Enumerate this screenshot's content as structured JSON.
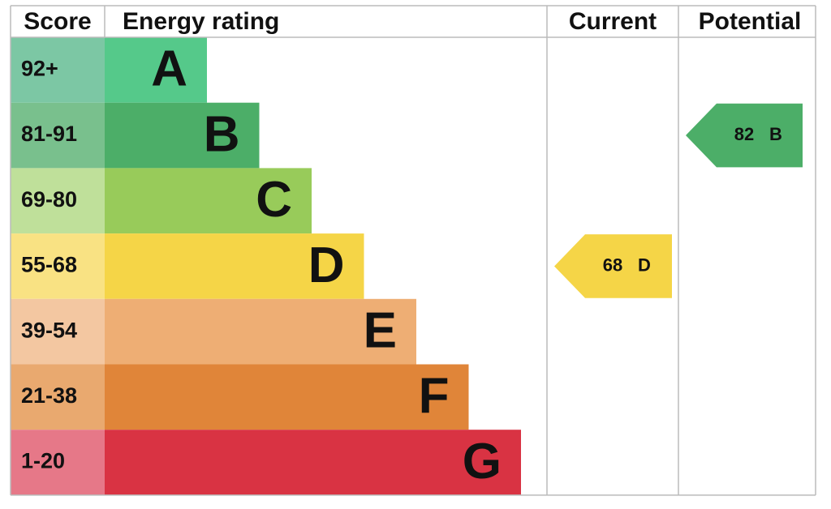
{
  "header": {
    "score": "Score",
    "rating": "Energy rating",
    "current": "Current",
    "potential": "Potential"
  },
  "bands": [
    {
      "score": "92+",
      "letter": "A",
      "color": "#55c98a",
      "score_color": "#7cc7a4"
    },
    {
      "score": "81-91",
      "letter": "B",
      "color": "#4cae68",
      "score_color": "#79c08d"
    },
    {
      "score": "69-80",
      "letter": "C",
      "color": "#98cb5a",
      "score_color": "#bfe09a"
    },
    {
      "score": "55-68",
      "letter": "D",
      "color": "#f5d547",
      "score_color": "#f9e283"
    },
    {
      "score": "39-54",
      "letter": "E",
      "color": "#eeae74",
      "score_color": "#f3c7a1"
    },
    {
      "score": "21-38",
      "letter": "F",
      "color": "#e08539",
      "score_color": "#e9a96f"
    },
    {
      "score": "1-20",
      "letter": "G",
      "color": "#d93343",
      "score_color": "#e67888"
    }
  ],
  "current": {
    "value": 68,
    "letter": "D"
  },
  "potential": {
    "value": 82,
    "letter": "B"
  }
}
